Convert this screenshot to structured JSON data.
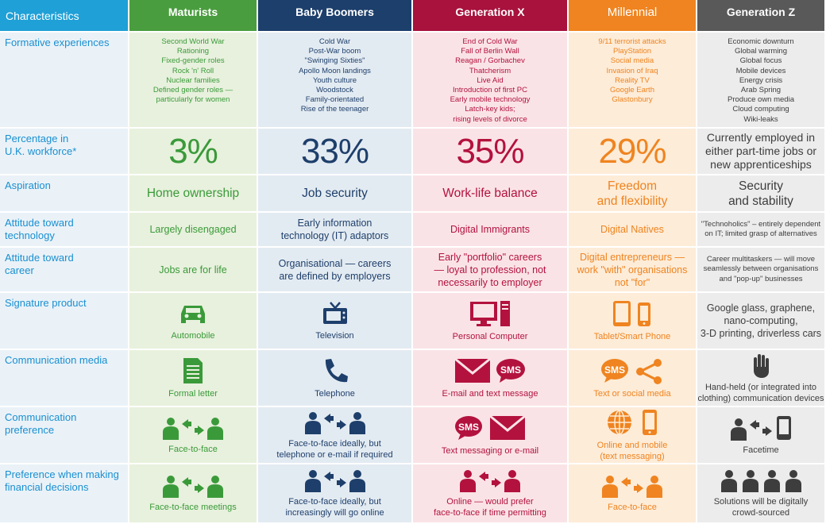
{
  "columns": [
    {
      "label": "Characteristics"
    },
    {
      "label": "Maturists"
    },
    {
      "label": "Baby Boomers"
    },
    {
      "label": "Generation X"
    },
    {
      "label": "Millennial"
    },
    {
      "label": "Generation Z"
    }
  ],
  "colors": {
    "maturists": "#3a9a3a",
    "boomers": "#1e3f6b",
    "genx": "#b3123e",
    "millennial": "#ef8420",
    "genz": "#3d3d3d",
    "label_blue": "#1a8fd0"
  },
  "rows": {
    "formative": {
      "label": "Formative experiences",
      "maturists": [
        "Second World War",
        "Rationing",
        "Fixed-gender roles",
        "Rock 'n' Roll",
        "Nuclear families",
        "Defined gender roles —",
        "particularly for women"
      ],
      "boomers": [
        "Cold War",
        "Post-War boom",
        "\"Swinging Sixties\"",
        "Apollo Moon landings",
        "Youth culture",
        "Woodstock",
        "Family-orientated",
        "Rise of the teenager"
      ],
      "genx": [
        "End of Cold War",
        "Fall of Berlin Wall",
        "Reagan / Gorbachev",
        "Thatcherism",
        "Live Aid",
        "Introduction of first PC",
        "Early mobile technology",
        "Latch-key kids;",
        "rising levels of divorce"
      ],
      "millennial": [
        "9/11 terrorist attacks",
        "PlayStation",
        "Social media",
        "Invasion of Iraq",
        "Reality TV",
        "Google Earth",
        "Glastonbury"
      ],
      "genz": [
        "Economic downturn",
        "Global warming",
        "Global focus",
        "Mobile devices",
        "Energy crisis",
        "Arab Spring",
        "Produce own media",
        "Cloud computing",
        "Wiki-leaks"
      ]
    },
    "workforce": {
      "label_line1": "Percentage in",
      "label_line2": "U.K. workforce*",
      "maturists": "3%",
      "boomers": "33%",
      "genx": "35%",
      "millennial": "29%",
      "genz": "Currently employed in either part-time jobs or new apprenticeships"
    },
    "aspiration": {
      "label": "Aspiration",
      "maturists": "Home ownership",
      "boomers": "Job security",
      "genx": "Work-life balance",
      "millennial_l1": "Freedom",
      "millennial_l2": "and flexibility",
      "genz_l1": "Security",
      "genz_l2": "and stability"
    },
    "tech": {
      "label_line1": "Attitude toward",
      "label_line2": "technology",
      "maturists": "Largely disengaged",
      "boomers_l1": "Early information",
      "boomers_l2": "technology (IT) adaptors",
      "genx": "Digital Immigrants",
      "millennial": "Digital Natives",
      "genz_l1": "\"Technoholics\" – entirely dependent",
      "genz_l2": "on IT; limited grasp of alternatives"
    },
    "career": {
      "label_line1": "Attitude toward",
      "label_line2": "career",
      "maturists": "Jobs are for life",
      "boomers_l1": "Organisational — careers",
      "boomers_l2": "are defined by employers",
      "genx_l1": "Early \"portfolio\" careers",
      "genx_l2": "— loyal to profession, not",
      "genx_l3": "necessarily to employer",
      "millennial_l1": "Digital entrepreneurs —",
      "millennial_l2": "work \"with\" organisations",
      "millennial_l3": "not \"for\"",
      "genz_l1": "Career multitaskers — will move",
      "genz_l2": "seamlessly between organisations",
      "genz_l3": "and \"pop-up\" businesses"
    },
    "product": {
      "label": "Signature product",
      "maturists": "Automobile",
      "boomers": "Television",
      "genx": "Personal Computer",
      "millennial": "Tablet/Smart Phone",
      "genz_l1": "Google glass, graphene,",
      "genz_l2": "nano-computing,",
      "genz_l3": "3-D printing, driverless cars"
    },
    "media": {
      "label": "Communication media",
      "maturists": "Formal letter",
      "boomers": "Telephone",
      "genx": "E-mail and text message",
      "millennial": "Text or social media",
      "sms": "SMS",
      "genz_l1": "Hand-held (or integrated into",
      "genz_l2": "clothing) communication devices"
    },
    "commpref": {
      "label_line1": "Communication",
      "label_line2": "preference",
      "maturists": "Face-to-face",
      "boomers_l1": "Face-to-face ideally, but",
      "boomers_l2": "telephone or e-mail if required",
      "genx": "Text messaging or e-mail",
      "millennial_l1": "Online and mobile",
      "millennial_l2": "(text messaging)",
      "genz": "Facetime"
    },
    "finance": {
      "label_line1": "Preference when making",
      "label_line2": "financial decisions",
      "maturists": "Face-to-face meetings",
      "boomers_l1": "Face-to-face ideally, but",
      "boomers_l2": "increasingly will go online",
      "genx_l1": "Online — would prefer",
      "genx_l2": "face-to-face if time permitting",
      "millennial": "Face-to-face",
      "genz_l1": "Solutions will be digitally",
      "genz_l2": "crowd-sourced"
    }
  }
}
